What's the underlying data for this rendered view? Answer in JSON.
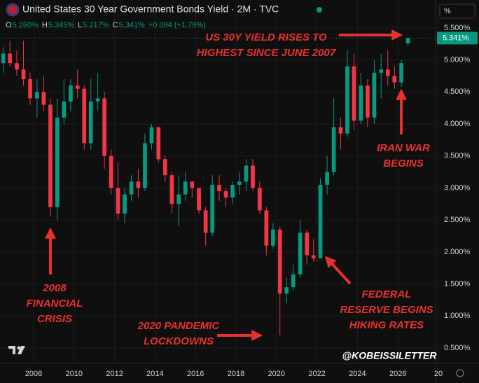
{
  "header": {
    "title": "United States 30 Year Government Bonds Yield · 2M · TVC",
    "ohlc": [
      {
        "key": "O",
        "value": "5.260%"
      },
      {
        "key": "H",
        "value": "5.345%"
      },
      {
        "key": "L",
        "value": "5.217%"
      },
      {
        "key": "C",
        "value": "5.341%"
      }
    ],
    "change": "+0.094 (+1.79%)",
    "scale_button": "%"
  },
  "chart_data": {
    "type": "candlestick",
    "x": [
      2006.5,
      2006.83,
      2007.17,
      2007.5,
      2007.83,
      2008.17,
      2008.5,
      2008.83,
      2009.17,
      2009.5,
      2009.83,
      2010.17,
      2010.5,
      2010.83,
      2011.17,
      2011.5,
      2011.83,
      2012.17,
      2012.5,
      2012.83,
      2013.17,
      2013.5,
      2013.83,
      2014.17,
      2014.5,
      2014.83,
      2015.17,
      2015.5,
      2015.83,
      2016.17,
      2016.5,
      2016.83,
      2017.17,
      2017.5,
      2017.83,
      2018.17,
      2018.5,
      2018.83,
      2019.17,
      2019.5,
      2019.83,
      2020.17,
      2020.5,
      2020.83,
      2021.17,
      2021.5,
      2021.83,
      2022.17,
      2022.5,
      2022.83,
      2023.17,
      2023.5,
      2023.83,
      2024.17,
      2024.5,
      2024.83,
      2025.17,
      2025.5,
      2025.83,
      2026.17,
      2026.5
    ],
    "open": [
      4.95,
      5.1,
      4.95,
      4.85,
      4.7,
      4.4,
      4.5,
      4.3,
      2.7,
      4.1,
      4.35,
      4.6,
      4.55,
      3.7,
      4.35,
      4.4,
      3.5,
      3.0,
      2.6,
      2.9,
      3.1,
      3.0,
      3.7,
      3.95,
      3.45,
      3.2,
      2.75,
      2.9,
      3.1,
      3.0,
      2.65,
      2.3,
      3.05,
      2.95,
      2.85,
      3.05,
      3.1,
      3.35,
      3.0,
      2.65,
      2.1,
      2.35,
      1.35,
      1.45,
      1.65,
      2.3,
      1.95,
      1.9,
      3.05,
      3.25,
      3.95,
      3.85,
      4.9,
      4.05,
      4.6,
      4.1,
      4.8,
      4.85,
      4.75,
      4.65,
      5.26
    ],
    "high": [
      5.2,
      5.3,
      5.15,
      5.3,
      4.8,
      4.7,
      4.75,
      4.4,
      4.4,
      4.7,
      4.7,
      4.85,
      4.6,
      4.7,
      4.8,
      4.5,
      3.6,
      3.4,
      3.0,
      3.2,
      3.3,
      3.85,
      4.0,
      3.95,
      3.5,
      3.25,
      3.2,
      3.25,
      3.1,
      3.0,
      2.7,
      3.2,
      3.2,
      3.0,
      3.1,
      3.25,
      3.45,
      3.45,
      3.1,
      2.7,
      2.45,
      2.4,
      1.6,
      1.8,
      2.5,
      2.35,
      2.2,
      3.15,
      3.5,
      4.4,
      4.1,
      5.15,
      5.1,
      4.8,
      4.7,
      5.0,
      5.1,
      5.15,
      4.9,
      5.0,
      5.345
    ],
    "low": [
      4.8,
      4.9,
      4.75,
      4.6,
      4.3,
      4.1,
      4.2,
      2.55,
      2.5,
      4.0,
      4.2,
      4.4,
      3.6,
      3.6,
      4.2,
      3.3,
      2.9,
      2.5,
      2.45,
      2.8,
      2.85,
      2.95,
      3.6,
      3.4,
      3.1,
      2.6,
      2.4,
      2.8,
      2.85,
      2.6,
      2.1,
      2.25,
      2.8,
      2.7,
      2.75,
      2.9,
      2.95,
      2.95,
      2.6,
      1.95,
      2.05,
      0.7,
      1.2,
      1.4,
      1.6,
      1.8,
      1.85,
      1.9,
      2.9,
      3.2,
      3.6,
      3.8,
      3.9,
      4.0,
      3.95,
      4.0,
      4.4,
      4.6,
      4.55,
      4.58,
      5.217
    ],
    "close": [
      5.1,
      4.95,
      4.85,
      4.7,
      4.4,
      4.5,
      4.3,
      2.7,
      4.1,
      4.35,
      4.6,
      4.55,
      3.7,
      4.35,
      4.4,
      3.5,
      3.0,
      2.6,
      2.9,
      3.1,
      3.0,
      3.7,
      3.95,
      3.45,
      3.2,
      2.75,
      2.9,
      3.1,
      3.0,
      2.65,
      2.3,
      3.05,
      2.95,
      2.85,
      3.05,
      3.1,
      3.35,
      3.0,
      2.65,
      2.1,
      2.35,
      1.35,
      1.45,
      1.65,
      2.3,
      1.95,
      1.9,
      3.05,
      3.25,
      3.95,
      3.85,
      4.9,
      4.05,
      4.6,
      4.1,
      4.8,
      4.85,
      4.75,
      4.65,
      4.95,
      5.341
    ],
    "up_color": "#089981",
    "down_color": "#f23645",
    "xlim": [
      2006.34,
      2027.86
    ],
    "xticks": [
      2008,
      2010,
      2012,
      2014,
      2016,
      2018,
      2020,
      2022,
      2024,
      2026,
      {
        "value": 2028,
        "label": "20"
      }
    ],
    "ylim": [
      0.26,
      5.63
    ],
    "yticks": [
      {
        "value": 0.5,
        "label": "0.500%"
      },
      {
        "value": 1.0,
        "label": "1.000%"
      },
      {
        "value": 1.5,
        "label": "1.500%"
      },
      {
        "value": 2.0,
        "label": "2.000%"
      },
      {
        "value": 2.5,
        "label": "2.500%"
      },
      {
        "value": 3.0,
        "label": "3.000%"
      },
      {
        "value": 3.5,
        "label": "3.500%"
      },
      {
        "value": 4.0,
        "label": "4.000%"
      },
      {
        "value": 4.5,
        "label": "4.500%"
      },
      {
        "value": 5.0,
        "label": "5.000%"
      },
      {
        "value": 5.5,
        "label": "5.500%"
      }
    ],
    "grid": true,
    "price_tag": {
      "value": 5.341,
      "label": "5.341%"
    },
    "annotations": [
      {
        "lines": [
          "US 30Y YIELD RISES TO",
          "HIGHEST SINCE JUNE 2007"
        ]
      },
      {
        "lines": [
          "IRAN WAR",
          "BEGINS"
        ]
      },
      {
        "lines": [
          "2008",
          "FINANCIAL",
          "CRISIS"
        ]
      },
      {
        "lines": [
          "2020 PANDEMIC",
          "LOCKDOWNS"
        ]
      },
      {
        "lines": [
          "FEDERAL",
          "RESERVE BEGINS",
          "HIKING RATES"
        ]
      }
    ],
    "watermark": "@KOBEISSILETTER"
  }
}
